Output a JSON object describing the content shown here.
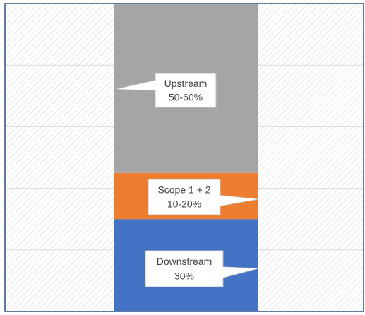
{
  "chart_data": {
    "type": "stacked-bar",
    "series": [
      {
        "name": "Downstream",
        "color": "#4472c4",
        "values": [
          30
        ],
        "value_labels": [
          "30%"
        ]
      },
      {
        "name": "Scope 1 + 2",
        "color": "#ed7d31",
        "values": [
          15
        ],
        "value_labels": [
          "10-20%"
        ]
      },
      {
        "name": "Upstream",
        "color": "#a5a5a5",
        "values": [
          55
        ],
        "value_labels": [
          "50-60%"
        ]
      }
    ],
    "ylim": [
      0,
      100
    ],
    "yticks": [
      0,
      20,
      40,
      60,
      80,
      100
    ],
    "grid": true
  }
}
